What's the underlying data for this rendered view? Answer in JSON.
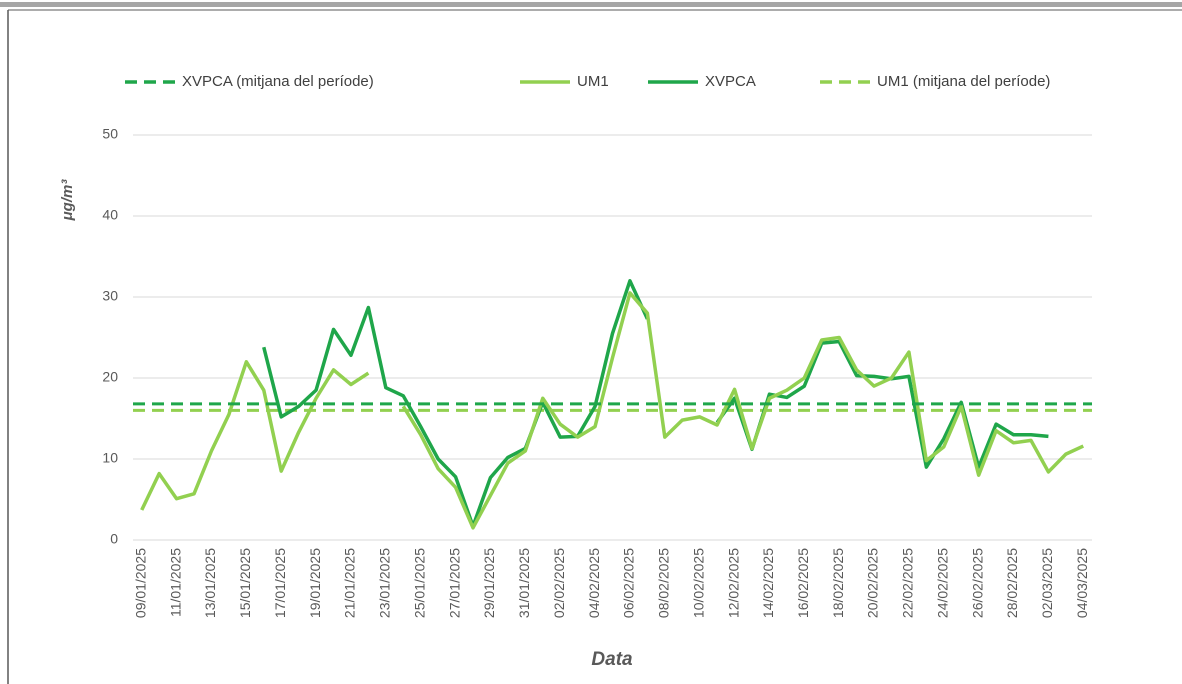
{
  "chart_data": {
    "type": "line",
    "x_label": "Data",
    "y_label": "μg/m³",
    "categories": [
      "09/01/2025",
      null,
      "11/01/2025",
      null,
      "13/01/2025",
      null,
      "15/01/2025",
      null,
      "17/01/2025",
      null,
      "19/01/2025",
      null,
      "21/01/2025",
      null,
      "23/01/2025",
      null,
      "25/01/2025",
      null,
      "27/01/2025",
      null,
      "29/01/2025",
      null,
      "31/01/2025",
      null,
      "02/02/2025",
      null,
      "04/02/2025",
      null,
      "06/02/2025",
      null,
      "08/02/2025",
      null,
      "10/02/2025",
      null,
      "12/02/2025",
      null,
      "14/02/2025",
      null,
      "16/02/2025",
      null,
      "18/02/2025",
      null,
      "20/02/2025",
      null,
      "22/02/2025",
      null,
      "24/02/2025",
      null,
      "26/02/2025",
      null,
      "28/02/2025",
      null,
      "02/03/2025",
      null,
      "04/03/2025"
    ],
    "series": [
      {
        "name": "XVPCA (mitjana del període)",
        "color": "#1fa64a",
        "style": "dashed",
        "value": 16.8
      },
      {
        "name": "UM1",
        "color": "#92d050",
        "style": "solid",
        "values": [
          3.7,
          8.2,
          5.1,
          5.7,
          11,
          15.5,
          22,
          18.5,
          8.5,
          13.3,
          17.5,
          21,
          19.2,
          20.6,
          null,
          16.5,
          13,
          8.8,
          6.5,
          1.5,
          5.5,
          9.5,
          11,
          17.5,
          14.3,
          12.7,
          14,
          22.5,
          30.5,
          28,
          12.7,
          14.8,
          15.2,
          14.2,
          18.6,
          11.3,
          17.5,
          18.5,
          20,
          24.7,
          25,
          21,
          19,
          20,
          23.2,
          9.8,
          11.5,
          16.5,
          8,
          13.5,
          12,
          12.3,
          8.4,
          10.6,
          11.6
        ]
      },
      {
        "name": "XVPCA",
        "color": "#1fa64a",
        "style": "solid",
        "values": [
          null,
          null,
          null,
          null,
          null,
          null,
          null,
          23.8,
          15.2,
          16.5,
          18.5,
          26,
          22.8,
          28.7,
          18.8,
          17.8,
          14,
          10,
          7.8,
          1.7,
          7.7,
          10.2,
          11.3,
          17,
          12.7,
          12.8,
          16.5,
          25.5,
          32,
          27.3,
          null,
          null,
          null,
          14.5,
          17.5,
          11.2,
          18,
          17.6,
          19,
          24.3,
          24.5,
          20.3,
          20.2,
          19.9,
          20.2,
          9,
          12.5,
          17,
          9,
          14.3,
          13,
          13,
          12.8,
          null,
          null
        ]
      },
      {
        "name": "UM1 (mitjana del període)",
        "color": "#92d050",
        "style": "dashed",
        "value": 16
      }
    ],
    "ylim": [
      0,
      50
    ],
    "yticks": [
      0,
      10,
      20,
      30,
      40,
      50
    ],
    "grid": true,
    "legend": "top"
  }
}
